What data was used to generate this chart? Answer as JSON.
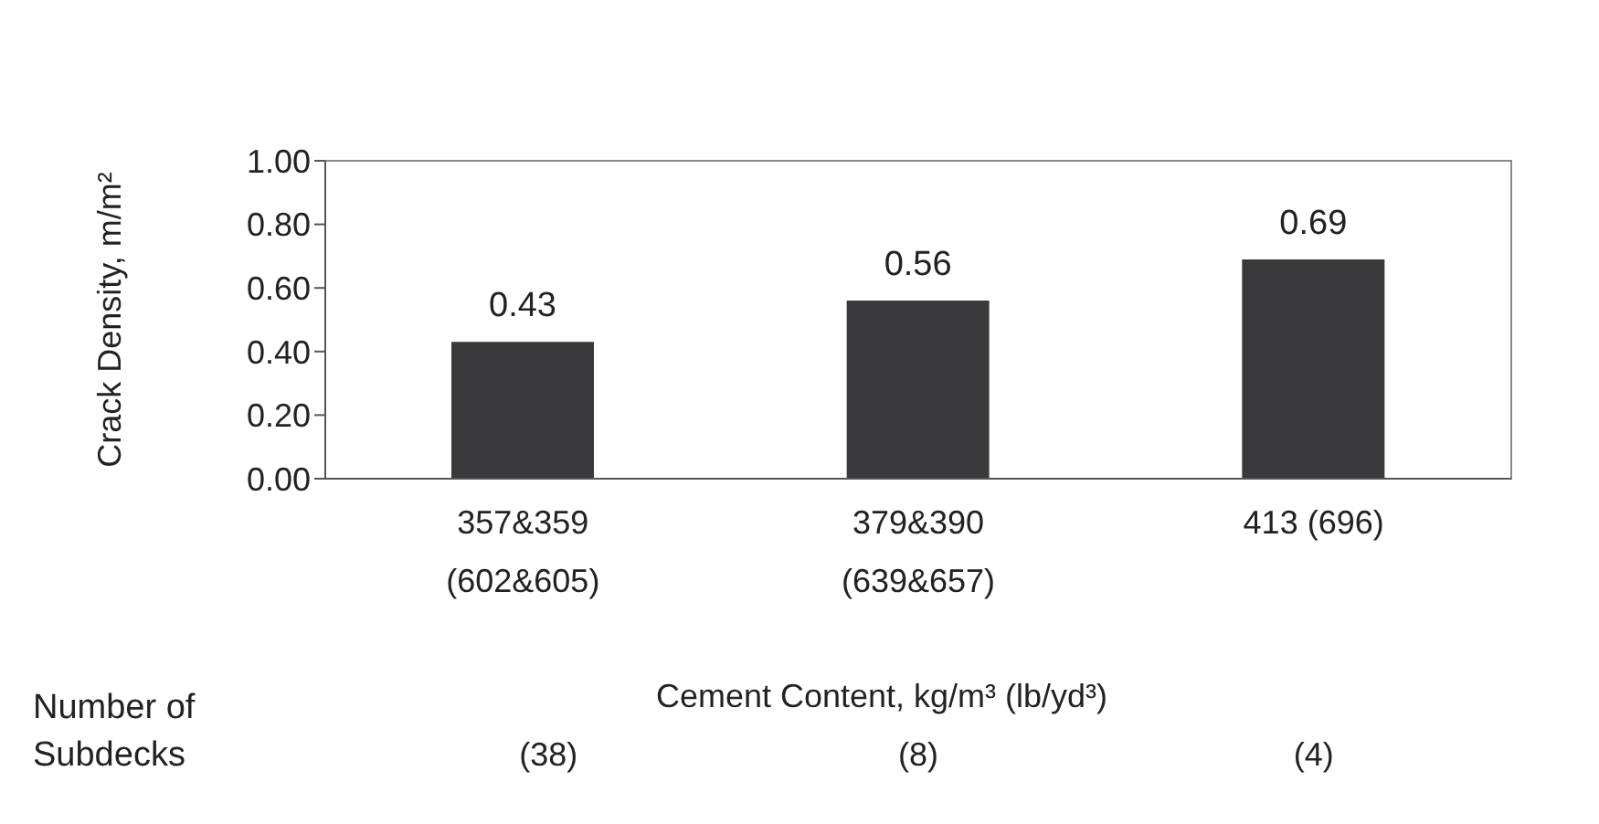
{
  "chart_data": {
    "type": "bar",
    "ylabel": "Crack Density, m/m²",
    "xlabel": "Cement Content, kg/m³ (lb/yd³)",
    "categories": [
      "357&359\n(602&605)",
      "379&390\n(639&657)",
      "413 (696)"
    ],
    "values": [
      0.43,
      0.56,
      0.69
    ],
    "color": "#3a3a3c",
    "ylim": [
      0,
      1
    ],
    "yticks": [
      {
        "value": 0,
        "label": "0.00"
      },
      {
        "value": 0.2,
        "label": "0.20"
      },
      {
        "value": 0.4,
        "label": "0.40"
      },
      {
        "value": 0.6,
        "label": "0.60"
      },
      {
        "value": 0.8,
        "label": "0.80"
      },
      {
        "value": 1,
        "label": "1.00"
      }
    ],
    "grid": false,
    "legend": false,
    "data_labels": true,
    "annotations": [
      "Number of\nSubdecks",
      "(38)",
      "(8)",
      "(4)"
    ]
  }
}
